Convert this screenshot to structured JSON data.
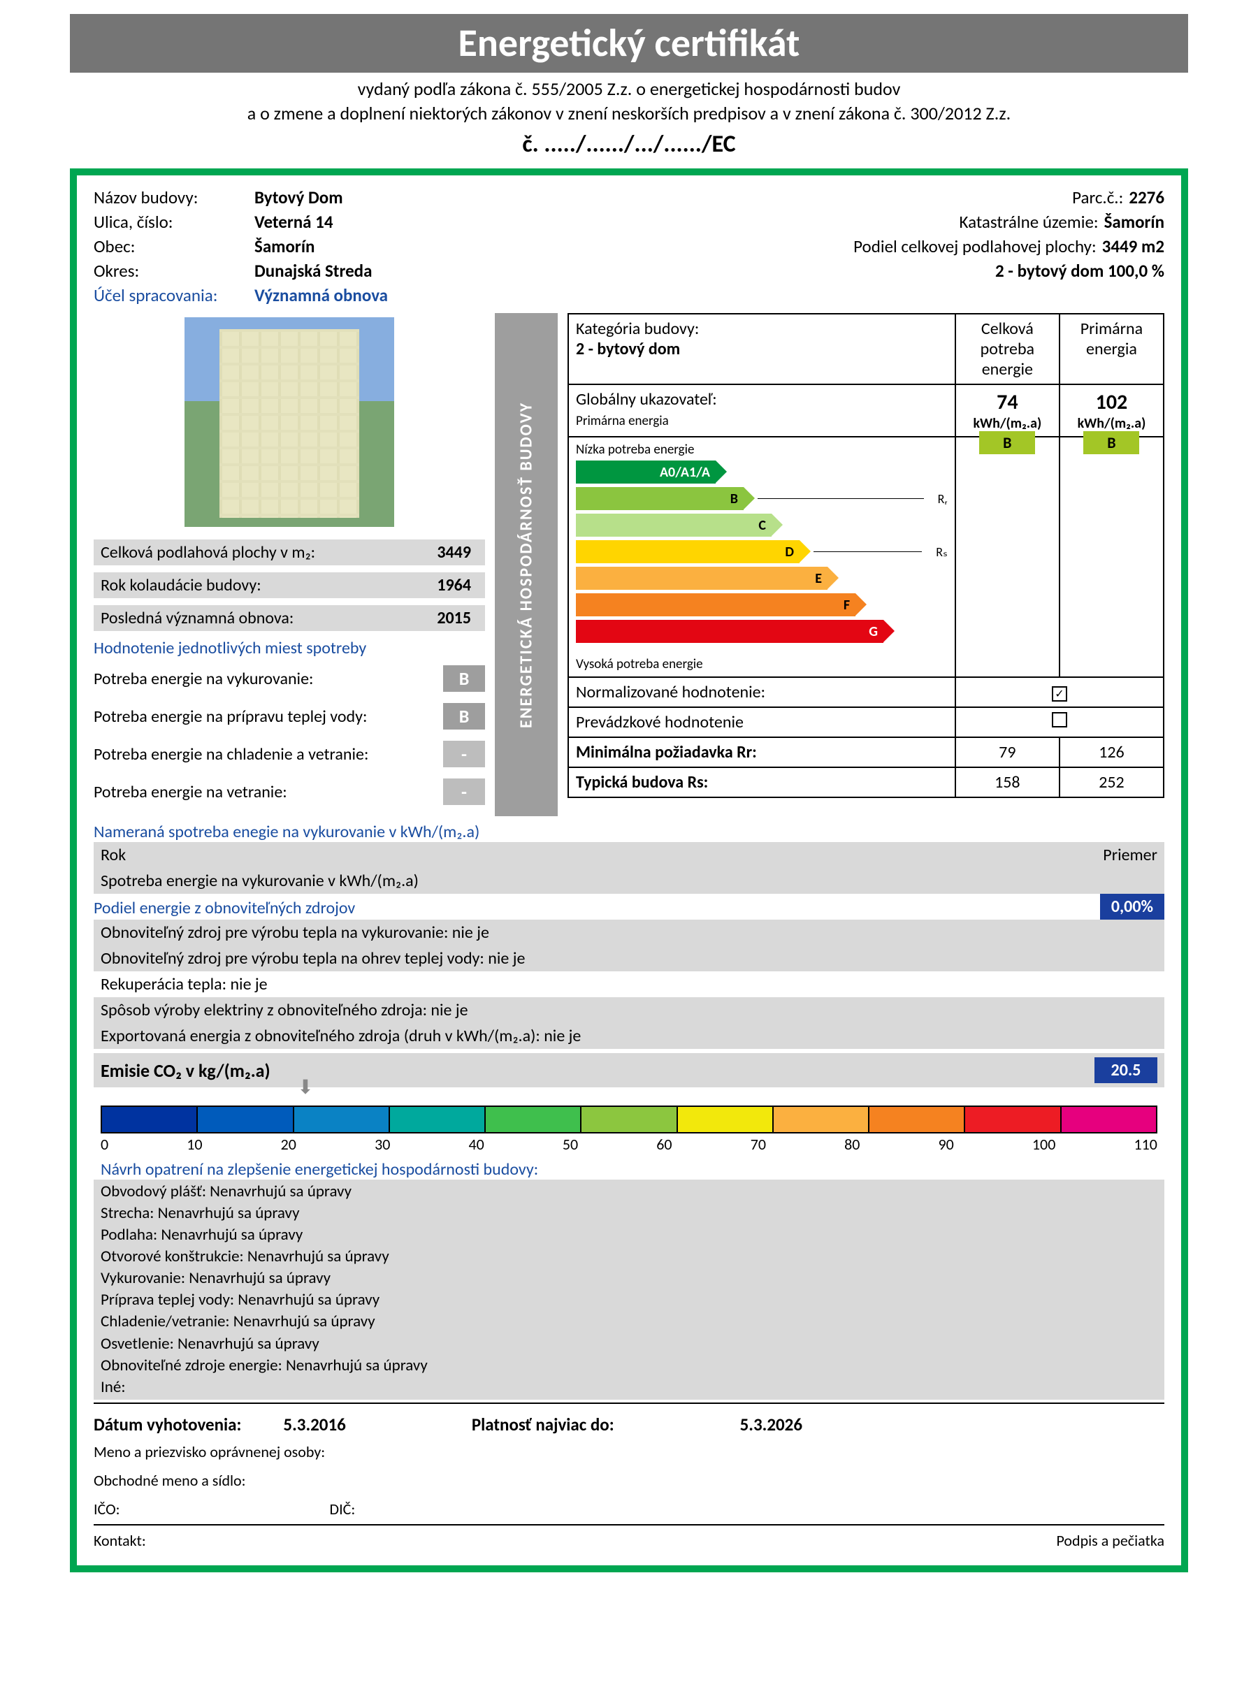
{
  "header": {
    "title": "Energetický certifikát",
    "subtitle1": "vydaný podľa zákona č. 555/2005 Z.z. o energetickej hospodárnosti budov",
    "subtitle2": "a o zmene a doplnení niektorých zákonov v znení neskorších predpisov a v znení zákona č. 300/2012 Z.z.",
    "cert_num": "č. ...../....../.../....../EC"
  },
  "building": {
    "labels": {
      "name": "Názov budovy:",
      "street": "Ulica, číslo:",
      "city": "Obec:",
      "district": "Okres:",
      "purpose": "Účel spracovania:",
      "parcel": "Parc.č.:",
      "cadastre": "Katastrálne územie:",
      "floor_share": "Podiel celkovej podlahovej plochy:",
      "floor_share_right": "2 - bytový dom 100,0 %"
    },
    "name": "Bytový Dom",
    "street": "Veterná 14",
    "city": "Šamorín",
    "district": "Dunajská Streda",
    "purpose": "Významná obnova",
    "parcel": "2276",
    "cadastre": "Šamorín",
    "floor_share": "3449 m2"
  },
  "left": {
    "rows": {
      "area_label": "Celková podlahová plochy v m₂:",
      "area": "3449",
      "year_label": "Rok kolaudácie budovy:",
      "year": "1964",
      "renovation_label": "Posledná významná obnova:",
      "renovation": "2015"
    },
    "places_header": "Hodnotenie jednotlivých miest spotreby",
    "needs": {
      "heating_label": "Potreba energie na vykurovanie:",
      "heating_badge": "B",
      "hotwater_label": "Potreba energie na prípravu teplej vody:",
      "hotwater_badge": "B",
      "cooling_label": "Potreba energie na chladenie a vetranie:",
      "cooling_badge": "-",
      "ventilation_label": "Potreba energie na vetranie:",
      "ventilation_badge": "-"
    }
  },
  "vertical_bar": "ENERGETICKÁ  HOSPODÁRNOSŤ  BUDOVY",
  "main_table": {
    "category_label": "Kategória budovy:",
    "category_value": "2 - bytový dom",
    "col1": "Celková potreba energie",
    "col2": "Primárna energia",
    "global_label": "Globálny ukazovateľ:",
    "global_sub": "Primárna energia",
    "total_value": "74",
    "primary_value": "102",
    "unit": "kWh/(m₂.a)",
    "low_label": "Nízka potreba energie",
    "high_label": "Vysoká potreba energie",
    "arrows": {
      "a": "A0/A1/A",
      "b": "B",
      "c": "C",
      "d": "D",
      "e": "E",
      "f": "F",
      "g": "G",
      "rr": "Rᵣ",
      "rs": "Rₛ"
    },
    "rating1": "B",
    "rating2": "B",
    "normalized_label": "Normalizované hodnotenie:",
    "operational_label": "Prevádzkové hodnotenie",
    "min_req_label": "Minimálna požiadavka Rr:",
    "min_req_v1": "79",
    "min_req_v2": "126",
    "typical_label": "Typická budova Rs:",
    "typical_v1": "158",
    "typical_v2": "252"
  },
  "measured": {
    "title": "Nameraná spotreba enegie na vykurovanie v kWh/(m₂.a)",
    "col_year": "Rok",
    "col_avg": "Priemer",
    "row2": "Spotreba energie na vykurovanie v kWh/(m₂.a)"
  },
  "renewables": {
    "title": "Podiel energie z obnoviteľných zdrojov",
    "percent": "0,00%",
    "lines": [
      "Obnoviteľný zdroj pre výrobu tepla na vykurovanie: nie je",
      "Obnoviteľný zdroj pre výrobu tepla na ohrev teplej vody: nie je",
      "Rekuperácia tepla: nie je",
      "Spôsob výroby elektriny z obnoviteľného zdroja: nie je",
      "Exportovaná energia z obnoviteľného zdroja (druh v kWh/(m₂.a): nie je"
    ]
  },
  "co2": {
    "label": "Emisie CO₂ v kg/(m₂.a)",
    "value": "20.5",
    "pointer_position_pct": 18.6,
    "colors": [
      "#0033a0",
      "#005bbb",
      "#0a82c4",
      "#00a99d",
      "#3fbf4d",
      "#8cc63f",
      "#f2e80c",
      "#fbb040",
      "#f58220",
      "#ed1c24",
      "#e6007e"
    ],
    "ticks": [
      "0",
      "10",
      "20",
      "30",
      "40",
      "50",
      "60",
      "70",
      "80",
      "90",
      "100",
      "110"
    ],
    "ticks_title": "Návrh opatrení na zlepšenie energetickej hospodárnosti budovy:"
  },
  "improvements": [
    "Obvodový plášť:  Nenavrhujú sa úpravy",
    "Strecha:  Nenavrhujú sa úpravy",
    "Podlaha:  Nenavrhujú sa úpravy",
    "Otvorové konštrukcie:  Nenavrhujú sa úpravy",
    "Vykurovanie:  Nenavrhujú sa úpravy",
    "Príprava teplej vody:  Nenavrhujú sa úpravy",
    "Chladenie/vetranie:  Nenavrhujú sa úpravy",
    "Osvetlenie:  Nenavrhujú sa úpravy",
    "Obnoviteľné zdroje energie:  Nenavrhujú sa úpravy",
    "Iné:"
  ],
  "footer": {
    "issued_label": "Dátum vyhotovenia:",
    "issued": "5.3.2016",
    "valid_label": "Platnosť najviac do:",
    "valid": "5.3.2026",
    "person": "Meno a priezvisko oprávnenej osoby:",
    "company": "Obchodné meno a sídlo:",
    "ico": "IČO:",
    "dic": "DIČ:",
    "contact": "Kontakt:",
    "stamp": "Podpis a pečiatka"
  }
}
